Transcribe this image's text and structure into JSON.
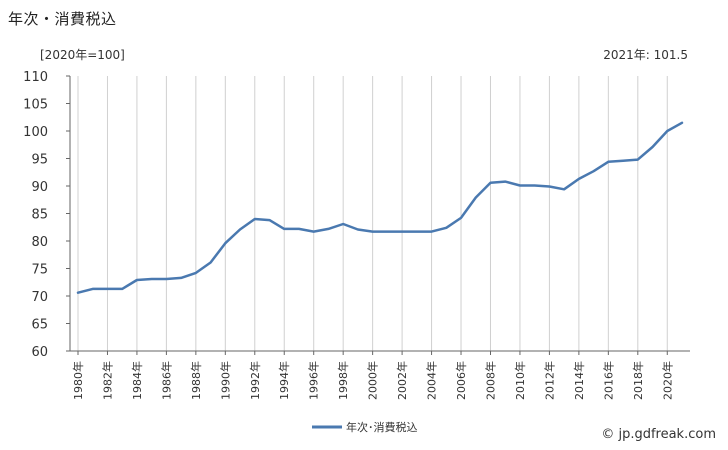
{
  "title": "年次・消費税込",
  "unit_label": "[2020年=100]",
  "annotation": "2021年: 101.5",
  "source": "© jp.gdfreak.com",
  "colors": {
    "line": "#4a79b0",
    "grid": "#d0d0d0",
    "axis": "#666666"
  },
  "chart_data": {
    "type": "line",
    "title": "年次・消費税込",
    "ylabel": "[2020年=100]",
    "xlabel": "",
    "ylim": [
      60,
      110
    ],
    "yticks": [
      60,
      65,
      70,
      75,
      80,
      85,
      90,
      95,
      100,
      105,
      110
    ],
    "xlim": [
      1980,
      2021
    ],
    "x_tick_labels": [
      "1980年",
      "1982年",
      "1984年",
      "1986年",
      "1988年",
      "1990年",
      "1992年",
      "1994年",
      "1996年",
      "1998年",
      "2000年",
      "2002年",
      "2004年",
      "2006年",
      "2008年",
      "2010年",
      "2012年",
      "2014年",
      "2016年",
      "2018年",
      "2020年"
    ],
    "x_tick_values": [
      1980,
      1982,
      1984,
      1986,
      1988,
      1990,
      1992,
      1994,
      1996,
      1998,
      2000,
      2002,
      2004,
      2006,
      2008,
      2010,
      2012,
      2014,
      2016,
      2018,
      2020
    ],
    "grid": "vertical",
    "legend": "bottom-center",
    "series": [
      {
        "name": "年次･消費税込",
        "x": [
          1980,
          1981,
          1982,
          1983,
          1984,
          1985,
          1986,
          1987,
          1988,
          1989,
          1990,
          1991,
          1992,
          1993,
          1994,
          1995,
          1996,
          1997,
          1998,
          1999,
          2000,
          2001,
          2002,
          2003,
          2004,
          2005,
          2006,
          2007,
          2008,
          2009,
          2010,
          2011,
          2012,
          2013,
          2014,
          2015,
          2016,
          2017,
          2018,
          2019,
          2020,
          2021
        ],
        "values": [
          70.6,
          71.3,
          71.3,
          71.3,
          72.9,
          73.1,
          73.1,
          73.3,
          74.2,
          76.1,
          79.6,
          82.1,
          84.0,
          83.8,
          82.2,
          82.2,
          81.7,
          82.2,
          83.1,
          82.1,
          81.7,
          81.7,
          81.7,
          81.7,
          81.7,
          82.4,
          84.2,
          87.9,
          90.6,
          90.8,
          90.1,
          90.1,
          89.9,
          89.4,
          91.3,
          92.7,
          94.4,
          94.6,
          94.8,
          97.1,
          100.0,
          101.5
        ]
      }
    ]
  }
}
